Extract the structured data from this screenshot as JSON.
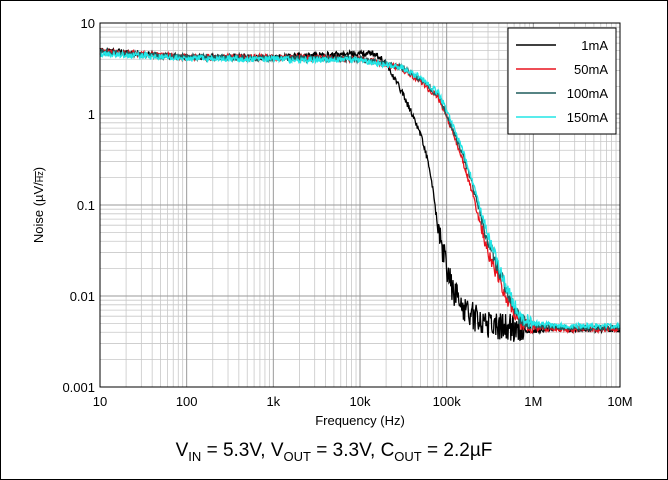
{
  "chart_data": {
    "type": "line",
    "xscale": "log",
    "yscale": "log",
    "xlim": [
      10,
      10000000
    ],
    "ylim": [
      0.001,
      10
    ],
    "xlabel": "Frequency (Hz)",
    "ylabel_parts": {
      "pre": "Noise (",
      "mu": "µ",
      "unit": "V/",
      "root": "Hz",
      "post": ")"
    },
    "x_ticks": [
      {
        "value": 10,
        "label": "10"
      },
      {
        "value": 100,
        "label": "100"
      },
      {
        "value": 1000,
        "label": "1k"
      },
      {
        "value": 10000,
        "label": "10k"
      },
      {
        "value": 100000,
        "label": "100k"
      },
      {
        "value": 1000000,
        "label": "1M"
      },
      {
        "value": 10000000,
        "label": "10M"
      }
    ],
    "y_ticks": [
      {
        "value": 0.001,
        "label": "0.001"
      },
      {
        "value": 0.01,
        "label": "0.01"
      },
      {
        "value": 0.1,
        "label": "0.1"
      },
      {
        "value": 1,
        "label": "1"
      },
      {
        "value": 10,
        "label": "10"
      }
    ],
    "grid": true,
    "legend_position": "top-right",
    "series": [
      {
        "name": "1mA",
        "color": "#000000",
        "x": [
          10,
          30,
          100,
          1000,
          10000,
          15000,
          20000,
          30000,
          40000,
          50000,
          60000,
          70000,
          80000,
          100000,
          120000,
          150000,
          200000,
          300000,
          500000,
          1000000,
          2000000,
          10000000
        ],
        "y": [
          5.0,
          4.6,
          4.2,
          4.2,
          4.6,
          4.6,
          3.6,
          1.8,
          1.0,
          0.6,
          0.32,
          0.14,
          0.05,
          0.02,
          0.011,
          0.008,
          0.006,
          0.005,
          0.0045,
          0.0042,
          0.0043,
          0.0043
        ]
      },
      {
        "name": "50mA",
        "color": "#e8141e",
        "x": [
          10,
          30,
          100,
          1000,
          10000,
          30000,
          50000,
          80000,
          100000,
          150000,
          200000,
          300000,
          500000,
          700000,
          1000000,
          2000000,
          10000000
        ],
        "y": [
          4.8,
          4.6,
          4.2,
          4.2,
          4.0,
          3.2,
          2.3,
          1.5,
          0.95,
          0.33,
          0.13,
          0.03,
          0.009,
          0.005,
          0.0045,
          0.0043,
          0.0043
        ]
      },
      {
        "name": "100mA",
        "color": "#1f5c5c",
        "x": [
          10,
          30,
          100,
          1000,
          10000,
          30000,
          50000,
          80000,
          100000,
          150000,
          200000,
          300000,
          500000,
          700000,
          1000000,
          2000000,
          10000000
        ],
        "y": [
          4.8,
          4.5,
          4.2,
          4.1,
          4.0,
          3.3,
          2.4,
          1.6,
          1.0,
          0.38,
          0.16,
          0.04,
          0.011,
          0.0055,
          0.0048,
          0.0045,
          0.0045
        ]
      },
      {
        "name": "150mA",
        "color": "#22e6e6",
        "x": [
          10,
          30,
          100,
          1000,
          10000,
          30000,
          50000,
          80000,
          100000,
          150000,
          200000,
          300000,
          500000,
          700000,
          1000000,
          2000000,
          10000000
        ],
        "y": [
          4.6,
          4.4,
          4.1,
          4.0,
          3.9,
          3.3,
          2.5,
          1.7,
          1.1,
          0.42,
          0.18,
          0.045,
          0.012,
          0.006,
          0.005,
          0.0047,
          0.0047
        ]
      }
    ]
  },
  "caption": {
    "v_in_sym": "V",
    "v_in_sub": "IN",
    "v_in_val": " = 5.3V, ",
    "v_out_sym": "V",
    "v_out_sub": "OUT",
    "v_out_val": " = 3.3V, ",
    "c_out_sym": "C",
    "c_out_sub": "OUT",
    "c_out_val": " = 2.2µF"
  }
}
